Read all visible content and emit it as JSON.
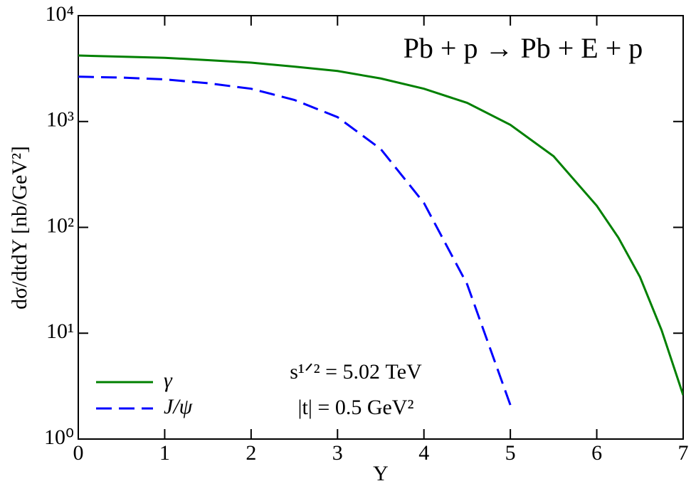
{
  "chart_data": {
    "type": "line",
    "title": "Pb + p → Pb + E + p",
    "annotations": [
      "s¹ᐟ² = 5.02 TeV",
      "|t| = 0.5 GeV²"
    ],
    "x_label": "Y",
    "y_label": "dσ/dtdY [nb/GeV²]",
    "x": [
      0,
      0.5,
      1,
      1.5,
      2,
      2.5,
      3,
      3.5,
      4,
      4.5,
      5,
      5.5,
      6,
      6.25,
      6.5,
      6.75,
      7
    ],
    "series": [
      {
        "name": "γ",
        "color": "#008000",
        "dash": false,
        "values": [
          4200,
          4100,
          4000,
          3800,
          3600,
          3300,
          3000,
          2550,
          2040,
          1500,
          930,
          470,
          160,
          80,
          34,
          10.7,
          2.6
        ]
      },
      {
        "name": "J/ψ",
        "color": "#0000ff",
        "dash": true,
        "values": [
          2650,
          2600,
          2500,
          2300,
          2040,
          1600,
          1100,
          550,
          170,
          29,
          2.1,
          null,
          null,
          null,
          null,
          null,
          null
        ]
      }
    ],
    "xlim": [
      0,
      7
    ],
    "xticks": [
      0,
      1,
      2,
      3,
      4,
      5,
      6,
      7
    ],
    "ylim": [
      1,
      10000
    ],
    "log_y": true,
    "yticks": [
      {
        "value": 1,
        "label": "10⁰"
      },
      {
        "value": 10,
        "label": "10¹"
      },
      {
        "value": 100,
        "label": "10²"
      },
      {
        "value": 1000,
        "label": "10³"
      },
      {
        "value": 10000,
        "label": "10⁴"
      }
    ],
    "legend": "lower left"
  }
}
